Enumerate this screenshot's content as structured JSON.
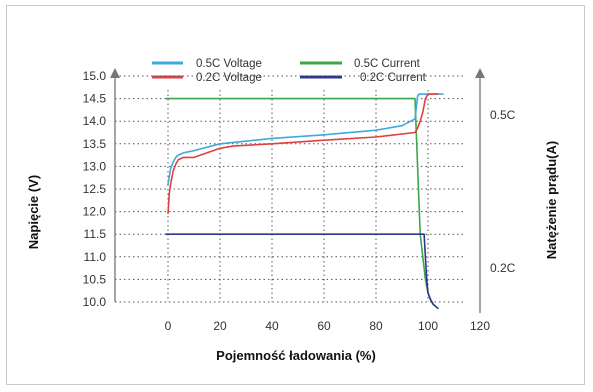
{
  "chart_data": {
    "type": "line",
    "xlabel": "Pojemność ładowania (%)",
    "ylabel_left": "Napięcie (V)",
    "ylabel_right": "Natężenie prądu(A)",
    "xlim": [
      -10,
      120
    ],
    "ylim": [
      9.8,
      15.0
    ],
    "x_ticks": [
      0,
      20,
      40,
      60,
      80,
      100,
      120
    ],
    "y_ticks": [
      10.0,
      10.5,
      11.0,
      11.5,
      12.0,
      12.5,
      13.0,
      13.5,
      14.0,
      14.5,
      15.0
    ],
    "right_tick_labels": [
      "0.5C",
      "0.2C"
    ],
    "grid": true,
    "legend_position": "top",
    "series": [
      {
        "name": "0.5C Voltage",
        "color": "#41a9dc",
        "x": [
          0,
          1,
          2,
          3,
          4,
          6,
          10,
          20,
          40,
          60,
          80,
          90,
          95,
          96,
          96.5,
          100,
          106
        ],
        "y": [
          12.6,
          12.95,
          13.1,
          13.2,
          13.25,
          13.3,
          13.35,
          13.5,
          13.62,
          13.7,
          13.8,
          13.9,
          14.05,
          14.55,
          14.6,
          14.6,
          14.6
        ]
      },
      {
        "name": "0.2C Voltage",
        "color": "#e04040",
        "x": [
          0,
          0.5,
          1,
          2,
          3,
          4,
          6,
          10,
          20,
          25,
          40,
          60,
          80,
          95,
          96,
          97,
          98,
          99,
          100,
          101,
          104
        ],
        "y": [
          11.95,
          12.4,
          12.6,
          12.9,
          13.05,
          13.15,
          13.2,
          13.2,
          13.4,
          13.45,
          13.5,
          13.58,
          13.65,
          13.75,
          13.85,
          14.0,
          14.2,
          14.5,
          14.6,
          14.6,
          14.6
        ]
      },
      {
        "name": "0.5C Current",
        "color": "#3aa84a",
        "x": [
          -1,
          95,
          96,
          97,
          98,
          99,
          100,
          101,
          102,
          103
        ],
        "y": [
          14.5,
          14.5,
          13.0,
          11.5,
          11.0,
          10.5,
          10.2,
          10.05,
          9.95,
          9.9
        ]
      },
      {
        "name": "0.2C Current",
        "color": "#2c3691",
        "x": [
          -1,
          98.5,
          99,
          99.5,
          100,
          101,
          102,
          104
        ],
        "y": [
          11.5,
          11.5,
          11.0,
          10.5,
          10.2,
          10.05,
          9.95,
          9.85
        ]
      }
    ]
  }
}
